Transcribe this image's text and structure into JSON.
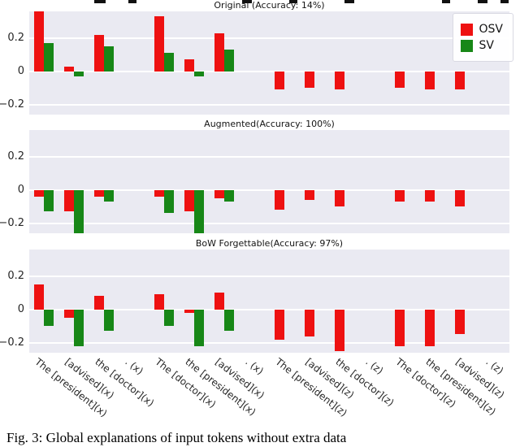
{
  "caption": "Fig. 3: Global explanations of input tokens without extra data",
  "legend": {
    "items": [
      {
        "label": "OSV",
        "color": "#ee1111"
      },
      {
        "label": "SV",
        "color": "#178717"
      }
    ]
  },
  "colors": {
    "osv": "#ee1111",
    "sv": "#178717",
    "panel_bg": "#eaeaf2",
    "grid": "#ffffff"
  },
  "chart_data": [
    {
      "type": "bar",
      "title": "Original (Accuracy: 14%)",
      "categories": [
        "The [president](x)",
        "[advised](x)",
        "the [doctor](x)",
        ". (x)",
        "The [doctor](x)",
        "the [president](x)",
        "[advised](x)",
        ". (x)",
        "The [president](z)",
        "[advised](z)",
        "the [doctor](z)",
        ". (z)",
        "The [doctor](z)",
        "the [president](z)",
        "[advised](z)",
        ". (z)"
      ],
      "series": [
        {
          "name": "OSV",
          "color": "#ee1111",
          "values": [
            0.36,
            0.03,
            0.22,
            0,
            0.33,
            0.07,
            0.23,
            0,
            -0.11,
            -0.1,
            -0.11,
            0,
            -0.1,
            -0.11,
            -0.11,
            0
          ]
        },
        {
          "name": "SV",
          "color": "#178717",
          "values": [
            0.17,
            -0.03,
            0.15,
            0,
            0.11,
            -0.03,
            0.13,
            0,
            0,
            0,
            0,
            0,
            0,
            0,
            0,
            0
          ]
        }
      ],
      "yticks": [
        {
          "value": 0.2,
          "label": "0.2"
        },
        {
          "value": 0,
          "label": "0"
        },
        {
          "value": -0.2,
          "label": "−0.2"
        }
      ],
      "ylim": [
        -0.26,
        0.36
      ],
      "grid": true,
      "legend_position": "upper right"
    },
    {
      "type": "bar",
      "title": "Augmented(Accuracy: 100%)",
      "categories": [
        "The [president](x)",
        "[advised](x)",
        "the [doctor](x)",
        ". (x)",
        "The [doctor](x)",
        "the [president](x)",
        "[advised](x)",
        ". (x)",
        "The [president](z)",
        "[advised](z)",
        "the [doctor](z)",
        ". (z)",
        "The [doctor](z)",
        "the [president](z)",
        "[advised](z)",
        ". (z)"
      ],
      "series": [
        {
          "name": "OSV",
          "color": "#ee1111",
          "values": [
            -0.04,
            -0.13,
            -0.04,
            0,
            -0.04,
            -0.13,
            -0.05,
            0,
            -0.12,
            -0.06,
            -0.1,
            0,
            -0.07,
            -0.07,
            -0.1,
            0
          ]
        },
        {
          "name": "SV",
          "color": "#178717",
          "values": [
            -0.13,
            -0.26,
            -0.07,
            0,
            -0.14,
            -0.26,
            -0.07,
            0,
            0,
            0,
            0,
            0,
            0,
            0,
            0,
            0
          ]
        }
      ],
      "yticks": [
        {
          "value": 0.2,
          "label": "0.2"
        },
        {
          "value": 0,
          "label": "0"
        },
        {
          "value": -0.2,
          "label": "−0.2"
        }
      ],
      "ylim": [
        -0.26,
        0.36
      ],
      "grid": true
    },
    {
      "type": "bar",
      "title": "BoW Forgettable(Accuracy: 97%)",
      "categories": [
        "The [president](x)",
        "[advised](x)",
        "the [doctor](x)",
        ". (x)",
        "The [doctor](x)",
        "the [president](x)",
        "[advised](x)",
        ". (x)",
        "The [president](z)",
        "[advised](z)",
        "the [doctor](z)",
        ". (z)",
        "The [doctor](z)",
        "the [president](z)",
        "[advised](z)",
        ". (z)"
      ],
      "series": [
        {
          "name": "OSV",
          "color": "#ee1111",
          "values": [
            0.15,
            -0.05,
            0.08,
            0,
            0.09,
            -0.02,
            0.1,
            0,
            -0.18,
            -0.16,
            -0.25,
            0,
            -0.22,
            -0.22,
            -0.15,
            0
          ]
        },
        {
          "name": "SV",
          "color": "#178717",
          "values": [
            -0.1,
            -0.22,
            -0.13,
            0,
            -0.1,
            -0.22,
            -0.13,
            0,
            0,
            0,
            0,
            0,
            0,
            0,
            0,
            0
          ]
        }
      ],
      "yticks": [
        {
          "value": 0.2,
          "label": "0.2"
        },
        {
          "value": 0,
          "label": "0"
        },
        {
          "value": -0.2,
          "label": "−0.2"
        }
      ],
      "ylim": [
        -0.26,
        0.36
      ],
      "grid": true
    }
  ]
}
